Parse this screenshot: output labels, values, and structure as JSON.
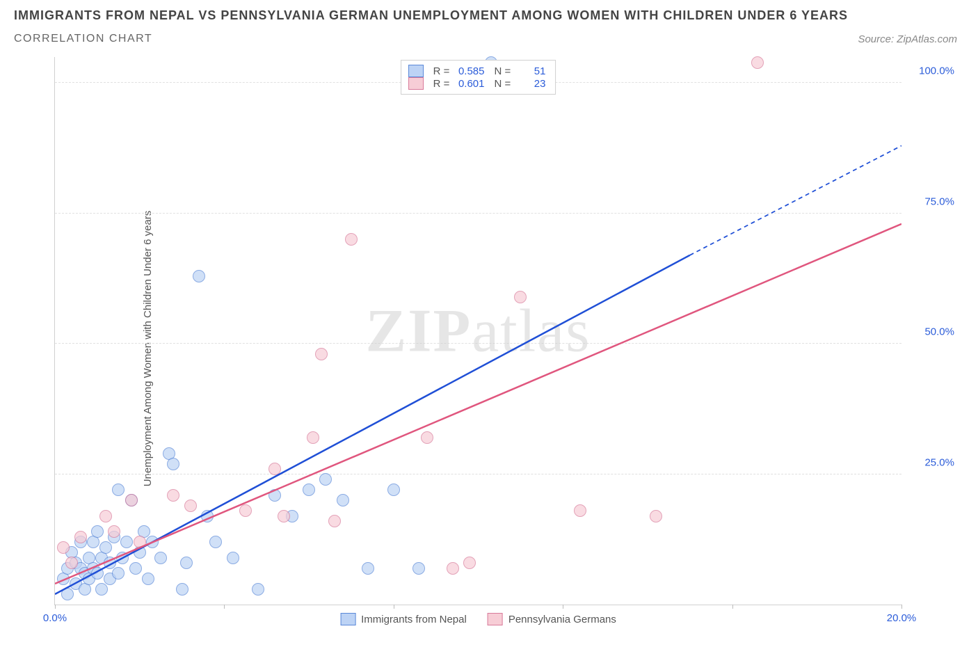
{
  "header": {
    "title": "IMMIGRANTS FROM NEPAL VS PENNSYLVANIA GERMAN UNEMPLOYMENT AMONG WOMEN WITH CHILDREN UNDER 6 YEARS",
    "subtitle": "CORRELATION CHART",
    "source": "Source: ZipAtlas.com"
  },
  "watermark": {
    "bold": "ZIP",
    "light": "atlas"
  },
  "chart": {
    "type": "scatter",
    "ylabel": "Unemployment Among Women with Children Under 6 years",
    "xlim": [
      0,
      20
    ],
    "ylim": [
      0,
      105
    ],
    "x_ticks": [
      0,
      4,
      8,
      12,
      16,
      20
    ],
    "x_tick_labels": {
      "0": "0.0%",
      "20": "20.0%"
    },
    "y_ticks": [
      25,
      50,
      75,
      100
    ],
    "y_tick_labels": {
      "25": "25.0%",
      "50": "50.0%",
      "75": "75.0%",
      "100": "100.0%"
    },
    "grid_color": "#e0e0e0",
    "legend_top": {
      "rows": [
        {
          "fill": "#bdd3f5",
          "stroke": "#5a88d8",
          "R": "0.585",
          "N": "51"
        },
        {
          "fill": "#f7cdd6",
          "stroke": "#d87a9a",
          "R": "0.601",
          "N": "23"
        }
      ]
    },
    "legend_bottom": [
      {
        "fill": "#bdd3f5",
        "stroke": "#5a88d8",
        "label": "Immigrants from Nepal"
      },
      {
        "fill": "#f7cdd6",
        "stroke": "#d87a9a",
        "label": "Pennsylvania Germans"
      }
    ],
    "series": [
      {
        "name": "Immigrants from Nepal",
        "fill": "#bdd3f5",
        "stroke": "#5a88d8",
        "opacity": 0.7,
        "r": 9,
        "trend": {
          "x1": 0,
          "y1": 2,
          "x2": 15,
          "y2": 67,
          "dash_x2": 20,
          "dash_y2": 88,
          "color": "#1f4fd6",
          "width": 2.5
        },
        "points": [
          [
            0.2,
            5
          ],
          [
            0.3,
            7
          ],
          [
            0.3,
            2
          ],
          [
            0.4,
            10
          ],
          [
            0.5,
            4
          ],
          [
            0.5,
            8
          ],
          [
            0.6,
            7
          ],
          [
            0.6,
            12
          ],
          [
            0.7,
            6
          ],
          [
            0.7,
            3
          ],
          [
            0.8,
            9
          ],
          [
            0.8,
            5
          ],
          [
            0.9,
            12
          ],
          [
            0.9,
            7
          ],
          [
            1.0,
            6
          ],
          [
            1.0,
            14
          ],
          [
            1.1,
            9
          ],
          [
            1.1,
            3
          ],
          [
            1.2,
            11
          ],
          [
            1.3,
            8
          ],
          [
            1.3,
            5
          ],
          [
            1.4,
            13
          ],
          [
            1.5,
            6
          ],
          [
            1.5,
            22
          ],
          [
            1.6,
            9
          ],
          [
            1.7,
            12
          ],
          [
            1.8,
            20
          ],
          [
            1.9,
            7
          ],
          [
            2.0,
            10
          ],
          [
            2.1,
            14
          ],
          [
            2.2,
            5
          ],
          [
            2.3,
            12
          ],
          [
            2.5,
            9
          ],
          [
            2.7,
            29
          ],
          [
            2.8,
            27
          ],
          [
            3.0,
            3
          ],
          [
            3.1,
            8
          ],
          [
            3.4,
            63
          ],
          [
            3.6,
            17
          ],
          [
            3.8,
            12
          ],
          [
            4.2,
            9
          ],
          [
            4.8,
            3
          ],
          [
            5.2,
            21
          ],
          [
            5.6,
            17
          ],
          [
            6.0,
            22
          ],
          [
            6.4,
            24
          ],
          [
            6.8,
            20
          ],
          [
            7.4,
            7
          ],
          [
            8.0,
            22
          ],
          [
            8.6,
            7
          ],
          [
            10.3,
            104
          ]
        ]
      },
      {
        "name": "Pennsylvania Germans",
        "fill": "#f7cdd6",
        "stroke": "#d87a9a",
        "opacity": 0.7,
        "r": 9,
        "trend": {
          "x1": 0,
          "y1": 4,
          "x2": 20,
          "y2": 73,
          "color": "#e0567e",
          "width": 2.5
        },
        "points": [
          [
            0.2,
            11
          ],
          [
            0.4,
            8
          ],
          [
            0.6,
            13
          ],
          [
            1.2,
            17
          ],
          [
            1.4,
            14
          ],
          [
            1.8,
            20
          ],
          [
            2.0,
            12
          ],
          [
            2.8,
            21
          ],
          [
            3.2,
            19
          ],
          [
            4.5,
            18
          ],
          [
            5.2,
            26
          ],
          [
            5.4,
            17
          ],
          [
            6.1,
            32
          ],
          [
            6.3,
            48
          ],
          [
            6.6,
            16
          ],
          [
            7.0,
            70
          ],
          [
            8.8,
            32
          ],
          [
            9.4,
            7
          ],
          [
            11.0,
            59
          ],
          [
            12.4,
            18
          ],
          [
            14.2,
            17
          ],
          [
            16.6,
            104
          ],
          [
            9.8,
            8
          ]
        ]
      }
    ]
  }
}
